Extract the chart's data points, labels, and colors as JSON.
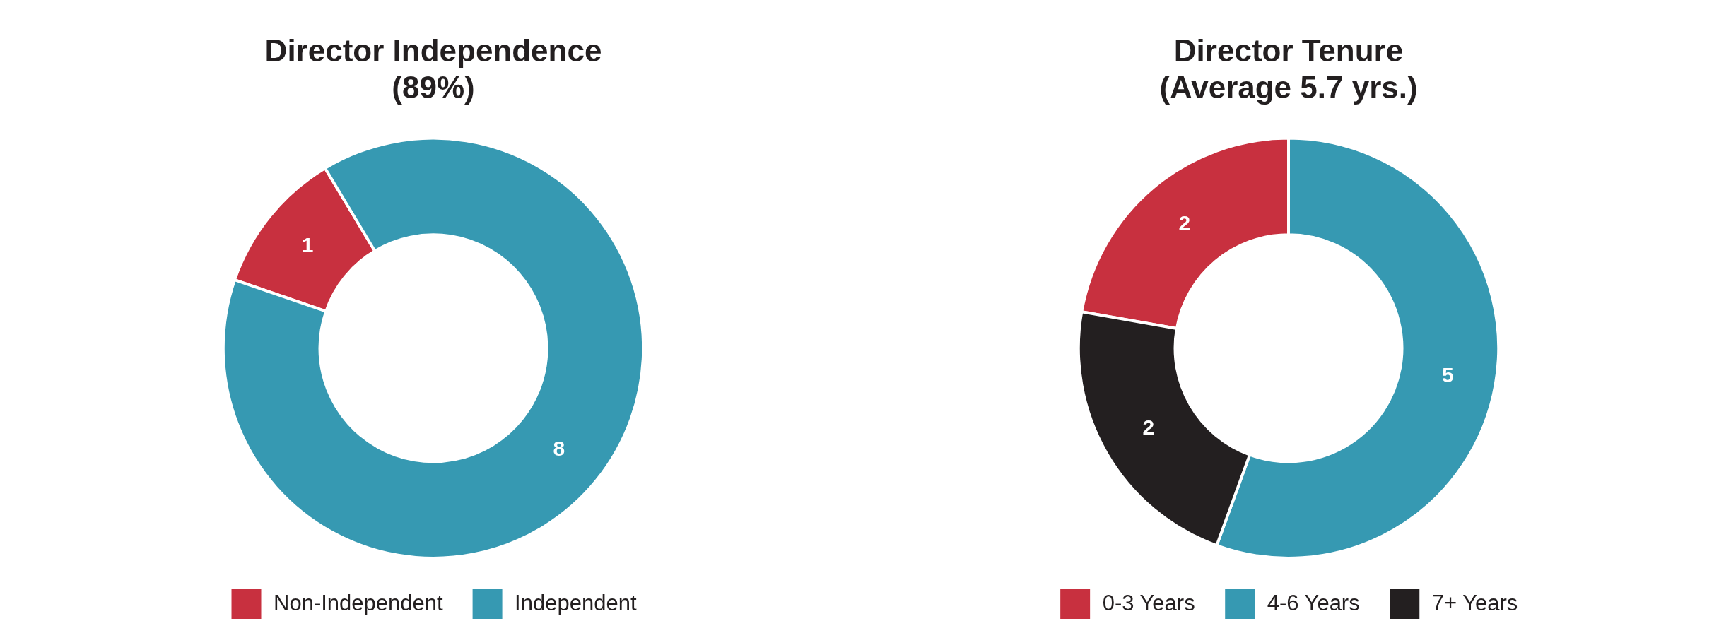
{
  "chart_data": [
    {
      "type": "donut",
      "title": "Director Independence\n(89%)",
      "categories": [
        "Non-Independent",
        "Independent"
      ],
      "values": [
        1,
        8
      ],
      "colors": [
        "#c8303f",
        "#3699b2"
      ],
      "data_labels": true,
      "legend": "bottom"
    },
    {
      "type": "donut",
      "title": "Director Tenure\n(Average 5.7 yrs.)",
      "categories": [
        "0-3 Years",
        "4-6 Years",
        "7+ Years"
      ],
      "values": [
        2,
        5,
        2
      ],
      "colors": [
        "#c8303f",
        "#3699b2",
        "#231f20"
      ],
      "data_labels": true,
      "legend": "bottom"
    }
  ]
}
